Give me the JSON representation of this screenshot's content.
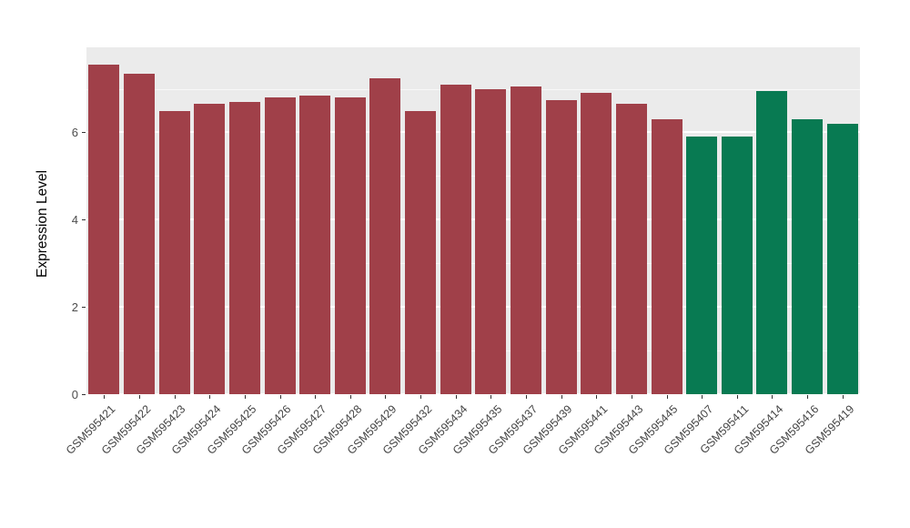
{
  "chart_data": {
    "type": "bar",
    "title": "",
    "xlabel": "",
    "ylabel": "Expression Level",
    "ylim": [
      0,
      7.95
    ],
    "yticks": [
      0,
      2,
      4,
      6
    ],
    "minor_ticks": [
      1,
      3,
      5,
      7
    ],
    "grid": true,
    "legend_position": "none",
    "panel_bg": "#EBEBEB",
    "grid_color": "#FFFFFF",
    "categories": [
      "GSM595421",
      "GSM595422",
      "GSM595423",
      "GSM595424",
      "GSM595425",
      "GSM595426",
      "GSM595427",
      "GSM595428",
      "GSM595429",
      "GSM595432",
      "GSM595434",
      "GSM595435",
      "GSM595437",
      "GSM595439",
      "GSM595441",
      "GSM595443",
      "GSM595445",
      "GSM595407",
      "GSM595411",
      "GSM595414",
      "GSM595416",
      "GSM595419"
    ],
    "values": [
      7.55,
      7.35,
      6.5,
      6.65,
      6.7,
      6.8,
      6.85,
      6.8,
      7.25,
      6.5,
      7.1,
      7.0,
      7.05,
      6.75,
      6.9,
      6.65,
      6.3,
      5.9,
      5.9,
      6.95,
      6.3,
      6.2
    ],
    "groups": [
      "red",
      "red",
      "red",
      "red",
      "red",
      "red",
      "red",
      "red",
      "red",
      "red",
      "red",
      "red",
      "red",
      "red",
      "red",
      "red",
      "red",
      "green",
      "green",
      "green",
      "green",
      "green"
    ],
    "group_colors": {
      "red": "#A04049",
      "green": "#087A52"
    }
  }
}
